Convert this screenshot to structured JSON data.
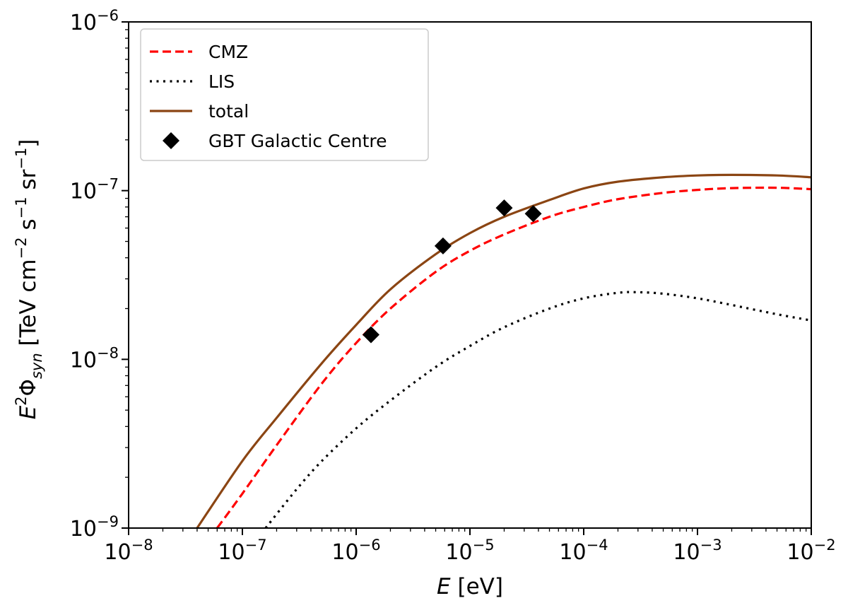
{
  "chart_data": {
    "type": "line",
    "scale": {
      "x": "log",
      "y": "log"
    },
    "xlim": [
      1e-08,
      0.01
    ],
    "ylim": [
      1e-09,
      1e-06
    ],
    "xlabel": {
      "italic": "E",
      "rest": " [eV]"
    },
    "ylabel": {
      "prefix": "E",
      "sup_main": "2",
      "phi": "Φ",
      "sub": "syn",
      "unit_open": " [TeV cm",
      "sup1": "−2",
      "unit_s": " s",
      "sup2": "−1",
      "unit_sr": " sr",
      "sup3": "−1",
      "unit_close": "]"
    },
    "x_ticks": [
      {
        "value": 1e-08,
        "base": "10",
        "exp": "−8"
      },
      {
        "value": 1e-07,
        "base": "10",
        "exp": "−7"
      },
      {
        "value": 1e-06,
        "base": "10",
        "exp": "−6"
      },
      {
        "value": 1e-05,
        "base": "10",
        "exp": "−5"
      },
      {
        "value": 0.0001,
        "base": "10",
        "exp": "−4"
      },
      {
        "value": 0.001,
        "base": "10",
        "exp": "−3"
      },
      {
        "value": 0.01,
        "base": "10",
        "exp": "−2"
      }
    ],
    "y_ticks": [
      {
        "value": 1e-09,
        "base": "10",
        "exp": "−9"
      },
      {
        "value": 1e-08,
        "base": "10",
        "exp": "−8"
      },
      {
        "value": 1e-07,
        "base": "10",
        "exp": "−7"
      },
      {
        "value": 1e-06,
        "base": "10",
        "exp": "−6"
      }
    ],
    "series": [
      {
        "name": "CMZ",
        "style": "dashed",
        "color": "#ff0000",
        "x": [
          6e-08,
          1e-07,
          2e-07,
          5e-07,
          1e-06,
          2e-06,
          5e-06,
          1e-05,
          2e-05,
          5e-05,
          0.0001,
          0.0002,
          0.0005,
          0.001,
          0.002,
          0.005,
          0.01
        ],
        "y": [
          1e-09,
          1.6e-09,
          3.1e-09,
          7.2e-09,
          1.25e-08,
          2e-08,
          3.3e-08,
          4.4e-08,
          5.5e-08,
          7e-08,
          8e-08,
          8.9e-08,
          9.7e-08,
          1.01e-07,
          1.035e-07,
          1.04e-07,
          1.02e-07
        ]
      },
      {
        "name": "LIS",
        "style": "dotted",
        "color": "#000000",
        "x": [
          1.6e-07,
          3e-07,
          5e-07,
          1e-06,
          2e-06,
          5e-06,
          1e-05,
          2e-05,
          5e-05,
          0.0001,
          0.0002,
          0.0003,
          0.0005,
          0.001,
          0.002,
          0.005,
          0.01
        ],
        "y": [
          1e-09,
          1.7e-09,
          2.5e-09,
          3.9e-09,
          5.7e-09,
          9e-09,
          1.2e-08,
          1.55e-08,
          2e-08,
          2.3e-08,
          2.48e-08,
          2.5e-08,
          2.45e-08,
          2.3e-08,
          2.1e-08,
          1.85e-08,
          1.7e-08
        ]
      },
      {
        "name": "total",
        "style": "solid",
        "color": "#8b4513",
        "x": [
          4e-08,
          1e-07,
          2e-07,
          5e-07,
          1e-06,
          2e-06,
          5e-06,
          1e-05,
          2e-05,
          5e-05,
          0.0001,
          0.0002,
          0.0005,
          0.001,
          0.002,
          0.005,
          0.01
        ],
        "y": [
          1e-09,
          2.5e-09,
          4.5e-09,
          9.5e-09,
          1.6e-08,
          2.6e-08,
          4.2e-08,
          5.6e-08,
          7e-08,
          8.8e-08,
          1.03e-07,
          1.13e-07,
          1.2e-07,
          1.23e-07,
          1.24e-07,
          1.23e-07,
          1.2e-07
        ]
      }
    ],
    "points": {
      "name": "GBT Galactic Centre",
      "marker": "diamond",
      "color": "#000000",
      "x": [
        1.35e-06,
        5.8e-06,
        2e-05,
        3.6e-05
      ],
      "y": [
        1.4e-08,
        4.7e-08,
        7.9e-08,
        7.3e-08
      ]
    },
    "legend": {
      "position": "upper-left",
      "entries": [
        "CMZ",
        "LIS",
        "total",
        "GBT Galactic Centre"
      ]
    }
  }
}
